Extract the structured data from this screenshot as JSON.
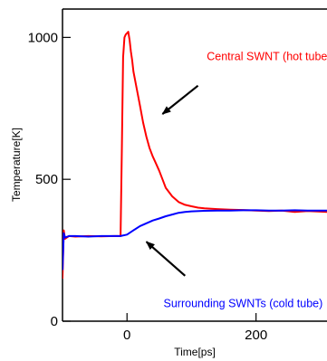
{
  "chart_data": {
    "type": "line",
    "title": "",
    "xlabel": "Time[ps]",
    "ylabel": "Temperature[K]",
    "xlim": [
      -100,
      310
    ],
    "ylim": [
      0,
      1100
    ],
    "xticks": [
      0,
      200
    ],
    "yticks": [
      0,
      500,
      1000
    ],
    "xtick_labels": [
      "0",
      "200"
    ],
    "ytick_labels": [
      "0",
      "500",
      "1000"
    ],
    "grid": false,
    "legend": "none",
    "series": [
      {
        "color": "#ff0000",
        "x": [
          -100,
          -98,
          -96,
          -90,
          -80,
          -60,
          -40,
          -20,
          -10,
          -8,
          -6,
          -4,
          -2,
          0,
          2,
          4,
          6,
          8,
          10,
          15,
          20,
          25,
          30,
          35,
          40,
          45,
          50,
          55,
          60,
          70,
          80,
          90,
          100,
          110,
          120,
          140,
          160,
          180,
          200,
          220,
          240,
          260,
          280,
          300,
          310
        ],
        "y": [
          150,
          320,
          290,
          300,
          298,
          300,
          299,
          300,
          300,
          600,
          930,
          1000,
          1010,
          1015,
          1020,
          990,
          950,
          920,
          880,
          820,
          760,
          700,
          650,
          610,
          580,
          555,
          530,
          500,
          470,
          440,
          420,
          410,
          405,
          400,
          398,
          395,
          393,
          392,
          390,
          388,
          390,
          385,
          388,
          386,
          385
        ]
      },
      {
        "color": "#0000ff",
        "x": [
          -100,
          -98,
          -96,
          -90,
          -80,
          -60,
          -40,
          -20,
          -10,
          0,
          10,
          20,
          30,
          40,
          50,
          60,
          70,
          80,
          90,
          100,
          120,
          140,
          160,
          180,
          200,
          220,
          240,
          260,
          280,
          300,
          310
        ],
        "y": [
          180,
          310,
          295,
          300,
          300,
          298,
          300,
          300,
          300,
          305,
          320,
          335,
          345,
          355,
          362,
          370,
          376,
          382,
          385,
          387,
          389,
          390,
          390,
          391,
          391,
          390,
          390,
          391,
          390,
          390,
          390
        ]
      }
    ],
    "annotations": [
      {
        "text": "Central SWNT (hot tube)",
        "color": "#ff0000",
        "x": 220,
        "y": 920
      },
      {
        "text": "Surrounding SWNTs (cold tube)",
        "color": "#0000ff",
        "x": 180,
        "y": 50
      }
    ],
    "arrows": [
      {
        "from": [
          110,
          830
        ],
        "to": [
          55,
          730
        ]
      },
      {
        "from": [
          90,
          160
        ],
        "to": [
          30,
          280
        ]
      }
    ]
  }
}
